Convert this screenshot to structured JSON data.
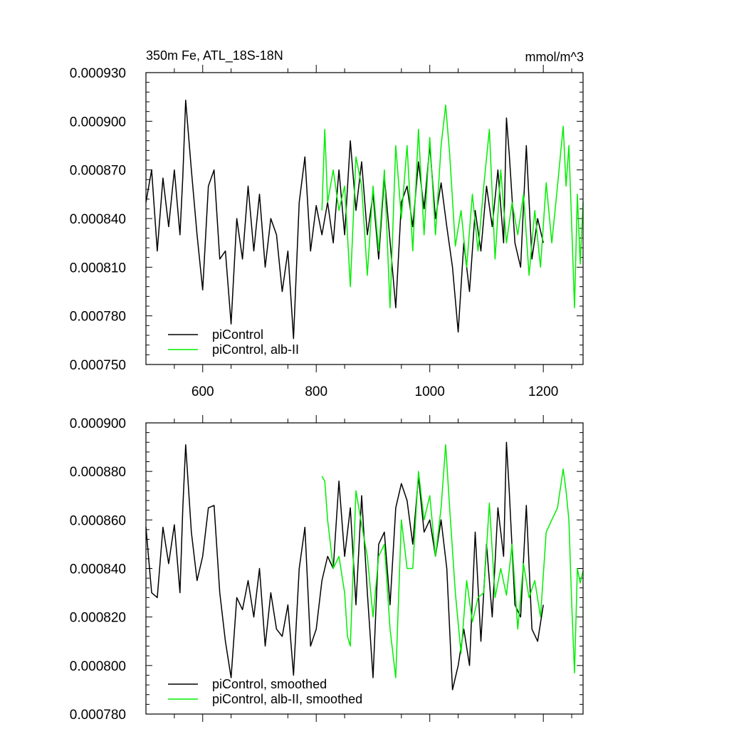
{
  "chart_data": [
    {
      "type": "line",
      "title_left": "350m Fe, ATL_18S-18N",
      "title_right": "mmol/m^3",
      "xlabel": "",
      "ylabel": "",
      "xlim": [
        500,
        1270
      ],
      "ylim": [
        0.00075,
        0.00093
      ],
      "x_ticks": [
        600,
        800,
        1000,
        1200
      ],
      "x_tick_labels": [
        "600",
        "800",
        "1000",
        "1200"
      ],
      "y_ticks": [
        0.00075,
        0.00078,
        0.00081,
        0.00084,
        0.00087,
        0.0009,
        0.00093
      ],
      "y_tick_labels": [
        "0.000750",
        "0.000780",
        "0.000810",
        "0.000840",
        "0.000870",
        "0.000900",
        "0.000930"
      ],
      "grid": false,
      "legend_position": "bottom-left",
      "series": [
        {
          "name": "piControl",
          "color": "#000000",
          "x": [
            500,
            510,
            520,
            530,
            540,
            550,
            560,
            565,
            570,
            580,
            590,
            600,
            610,
            620,
            630,
            640,
            650,
            660,
            670,
            680,
            690,
            700,
            710,
            720,
            730,
            740,
            750,
            760,
            770,
            780,
            790,
            800,
            810,
            820,
            830,
            840,
            850,
            860,
            870,
            880,
            890,
            900,
            910,
            920,
            930,
            940,
            950,
            960,
            970,
            980,
            990,
            1000,
            1010,
            1020,
            1030,
            1040,
            1050,
            1060,
            1070,
            1080,
            1090,
            1100,
            1110,
            1120,
            1130,
            1135,
            1140,
            1150,
            1160,
            1170,
            1180,
            1190,
            1200
          ],
          "values": [
            0.00085,
            0.00087,
            0.00082,
            0.000865,
            0.000835,
            0.00087,
            0.00083,
            0.000866,
            0.000913,
            0.00087,
            0.00083,
            0.000796,
            0.00086,
            0.00087,
            0.000815,
            0.00082,
            0.000775,
            0.00084,
            0.000815,
            0.00086,
            0.00082,
            0.000855,
            0.00081,
            0.00084,
            0.00083,
            0.000795,
            0.00082,
            0.000766,
            0.00085,
            0.000878,
            0.00082,
            0.000848,
            0.00083,
            0.00085,
            0.000825,
            0.00087,
            0.00083,
            0.000888,
            0.000845,
            0.000875,
            0.00083,
            0.000855,
            0.000815,
            0.000866,
            0.000826,
            0.000785,
            0.00085,
            0.00086,
            0.000835,
            0.000875,
            0.000846,
            0.000885,
            0.00084,
            0.000862,
            0.000835,
            0.00081,
            0.00077,
            0.000825,
            0.000795,
            0.000845,
            0.00082,
            0.00086,
            0.000835,
            0.00087,
            0.000825,
            0.000902,
            0.00088,
            0.000825,
            0.00081,
            0.000885,
            0.000815,
            0.00084,
            0.000825
          ]
        },
        {
          "name": "piControl, alb-II",
          "color": "#00ee00",
          "x": [
            810,
            815,
            820,
            830,
            840,
            850,
            855,
            860,
            870,
            880,
            890,
            900,
            910,
            920,
            930,
            940,
            950,
            960,
            970,
            980,
            990,
            1000,
            1010,
            1020,
            1028,
            1035,
            1045,
            1055,
            1065,
            1075,
            1085,
            1095,
            1105,
            1115,
            1125,
            1135,
            1145,
            1155,
            1165,
            1175,
            1185,
            1195,
            1205,
            1215,
            1225,
            1235,
            1240,
            1245,
            1250,
            1255,
            1260,
            1265,
            1270
          ],
          "values": [
            0.000845,
            0.000895,
            0.00085,
            0.00087,
            0.000845,
            0.00086,
            0.00083,
            0.000798,
            0.000878,
            0.00086,
            0.000805,
            0.00086,
            0.00082,
            0.00087,
            0.000785,
            0.000885,
            0.00084,
            0.000885,
            0.00082,
            0.000895,
            0.00083,
            0.00089,
            0.00083,
            0.000885,
            0.00091,
            0.00088,
            0.000823,
            0.000845,
            0.00081,
            0.000855,
            0.00082,
            0.00086,
            0.000895,
            0.000815,
            0.00087,
            0.000825,
            0.00085,
            0.00083,
            0.000855,
            0.000805,
            0.000845,
            0.00081,
            0.000862,
            0.000825,
            0.00086,
            0.000897,
            0.00086,
            0.000885,
            0.000835,
            0.000785,
            0.000855,
            0.000812,
            0.00085
          ]
        }
      ]
    },
    {
      "type": "line",
      "title_left": "",
      "title_right": "",
      "xlabel": "",
      "ylabel": "",
      "xlim": [
        500,
        1270
      ],
      "ylim": [
        0.00078,
        0.0009
      ],
      "x_ticks": [
        600,
        800,
        1000,
        1200
      ],
      "x_tick_labels": [],
      "y_ticks": [
        0.00078,
        0.0008,
        0.00082,
        0.00084,
        0.00086,
        0.00088,
        0.0009
      ],
      "y_tick_labels": [
        "0.000780",
        "0.000800",
        "0.000820",
        "0.000840",
        "0.000860",
        "0.000880",
        "0.000900"
      ],
      "grid": false,
      "legend_position": "bottom-left",
      "series": [
        {
          "name": "piControl, smoothed",
          "color": "#000000",
          "x": [
            500,
            510,
            520,
            530,
            540,
            550,
            560,
            565,
            570,
            580,
            590,
            600,
            610,
            620,
            630,
            640,
            650,
            660,
            670,
            680,
            690,
            700,
            710,
            720,
            730,
            740,
            750,
            760,
            770,
            780,
            790,
            800,
            810,
            820,
            830,
            840,
            850,
            860,
            870,
            880,
            890,
            900,
            910,
            920,
            930,
            940,
            950,
            960,
            970,
            980,
            990,
            1000,
            1010,
            1020,
            1030,
            1040,
            1050,
            1060,
            1070,
            1080,
            1090,
            1100,
            1110,
            1120,
            1130,
            1135,
            1140,
            1150,
            1160,
            1170,
            1180,
            1190,
            1200
          ],
          "values": [
            0.000857,
            0.00083,
            0.000828,
            0.000857,
            0.000842,
            0.000858,
            0.00083,
            0.000865,
            0.000891,
            0.000855,
            0.000835,
            0.000845,
            0.000865,
            0.000866,
            0.00083,
            0.00081,
            0.000795,
            0.000828,
            0.000823,
            0.000835,
            0.00082,
            0.00084,
            0.000808,
            0.00083,
            0.000815,
            0.000812,
            0.000825,
            0.000796,
            0.00084,
            0.000857,
            0.000808,
            0.000815,
            0.000835,
            0.000845,
            0.00084,
            0.000876,
            0.000845,
            0.000865,
            0.000825,
            0.00087,
            0.00083,
            0.000795,
            0.00085,
            0.000855,
            0.000825,
            0.000865,
            0.000875,
            0.000868,
            0.00085,
            0.000878,
            0.000855,
            0.00086,
            0.000845,
            0.00086,
            0.00084,
            0.00079,
            0.0008,
            0.000815,
            0.0008,
            0.000855,
            0.00081,
            0.00085,
            0.00082,
            0.000865,
            0.000845,
            0.000892,
            0.000872,
            0.000825,
            0.00082,
            0.000866,
            0.000815,
            0.00081,
            0.000825
          ]
        },
        {
          "name": "piControl, alb-II, smoothed",
          "color": "#00ee00",
          "x": [
            810,
            815,
            820,
            830,
            840,
            850,
            855,
            860,
            870,
            880,
            890,
            900,
            910,
            920,
            930,
            940,
            950,
            960,
            970,
            980,
            990,
            1000,
            1010,
            1020,
            1028,
            1035,
            1045,
            1055,
            1065,
            1075,
            1085,
            1095,
            1105,
            1115,
            1125,
            1135,
            1145,
            1155,
            1165,
            1175,
            1185,
            1195,
            1205,
            1215,
            1225,
            1235,
            1240,
            1245,
            1250,
            1255,
            1260,
            1265,
            1270
          ],
          "values": [
            0.000878,
            0.000876,
            0.00086,
            0.00084,
            0.000845,
            0.00083,
            0.000812,
            0.000808,
            0.000872,
            0.000858,
            0.000845,
            0.00082,
            0.000845,
            0.00085,
            0.000815,
            0.000795,
            0.00086,
            0.00084,
            0.00084,
            0.00088,
            0.00086,
            0.00087,
            0.000845,
            0.000865,
            0.000891,
            0.000865,
            0.00083,
            0.000805,
            0.000835,
            0.000818,
            0.000828,
            0.00083,
            0.000867,
            0.000828,
            0.00084,
            0.000829,
            0.00085,
            0.000815,
            0.000842,
            0.000828,
            0.000835,
            0.00082,
            0.000855,
            0.00086,
            0.000865,
            0.000881,
            0.000872,
            0.00086,
            0.000825,
            0.000797,
            0.00084,
            0.000834,
            0.000839
          ]
        }
      ]
    }
  ]
}
